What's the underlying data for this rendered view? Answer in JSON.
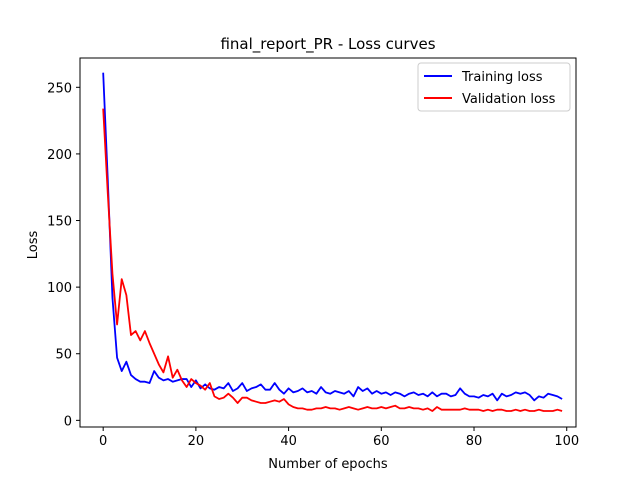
{
  "chart_data": {
    "type": "line",
    "title": "final_report_PR - Loss curves",
    "xlabel": "Number of epochs",
    "ylabel": "Loss",
    "xlim": [
      -5,
      102
    ],
    "ylim": [
      -5,
      272
    ],
    "xticks": [
      0,
      20,
      40,
      60,
      80,
      100
    ],
    "yticks": [
      0,
      50,
      100,
      150,
      200,
      250
    ],
    "grid": false,
    "legend_position": "top-right",
    "x": [
      0,
      1,
      2,
      3,
      4,
      5,
      6,
      7,
      8,
      9,
      10,
      11,
      12,
      13,
      14,
      15,
      16,
      17,
      18,
      19,
      20,
      21,
      22,
      23,
      24,
      25,
      26,
      27,
      28,
      29,
      30,
      31,
      32,
      33,
      34,
      35,
      36,
      37,
      38,
      39,
      40,
      41,
      42,
      43,
      44,
      45,
      46,
      47,
      48,
      49,
      50,
      51,
      52,
      53,
      54,
      55,
      56,
      57,
      58,
      59,
      60,
      61,
      62,
      63,
      64,
      65,
      66,
      67,
      68,
      69,
      70,
      71,
      72,
      73,
      74,
      75,
      76,
      77,
      78,
      79,
      80,
      81,
      82,
      83,
      84,
      85,
      86,
      87,
      88,
      89,
      90,
      91,
      92,
      93,
      94,
      95,
      96,
      97,
      98,
      99
    ],
    "series": [
      {
        "name": "Training loss",
        "color": "#0000ff",
        "values": [
          261,
          180,
          92,
          47,
          37,
          44,
          34,
          31,
          29,
          29,
          28,
          37,
          32,
          30,
          31,
          29,
          30,
          31,
          31,
          25,
          30,
          24,
          27,
          24,
          23,
          25,
          24,
          28,
          22,
          24,
          28,
          22,
          24,
          25,
          27,
          23,
          23,
          28,
          23,
          20,
          24,
          21,
          22,
          24,
          21,
          22,
          20,
          25,
          21,
          20,
          22,
          21,
          20,
          22,
          18,
          25,
          22,
          24,
          20,
          22,
          20,
          21,
          19,
          21,
          20,
          18,
          20,
          21,
          19,
          20,
          18,
          21,
          18,
          20,
          20,
          18,
          19,
          24,
          20,
          18,
          18,
          17,
          19,
          18,
          20,
          15,
          20,
          18,
          19,
          21,
          20,
          21,
          19,
          15,
          18,
          17,
          20,
          19,
          18,
          16
        ]
      },
      {
        "name": "Validation loss",
        "color": "#ff0000",
        "values": [
          234,
          170,
          110,
          72,
          106,
          94,
          64,
          67,
          60,
          67,
          58,
          50,
          42,
          36,
          48,
          32,
          38,
          30,
          25,
          31,
          28,
          26,
          23,
          28,
          18,
          16,
          17,
          20,
          17,
          13,
          17,
          17,
          15,
          14,
          13,
          13,
          14,
          15,
          14,
          16,
          12,
          10,
          9,
          9,
          8,
          8,
          9,
          9,
          10,
          9,
          9,
          8,
          9,
          10,
          9,
          8,
          9,
          10,
          9,
          9,
          10,
          9,
          10,
          11,
          9,
          9,
          10,
          9,
          9,
          8,
          9,
          7,
          10,
          8,
          8,
          8,
          8,
          8,
          9,
          8,
          8,
          8,
          7,
          8,
          7,
          8,
          8,
          7,
          7,
          8,
          7,
          8,
          7,
          7,
          8,
          7,
          7,
          7,
          8,
          7
        ]
      }
    ]
  }
}
